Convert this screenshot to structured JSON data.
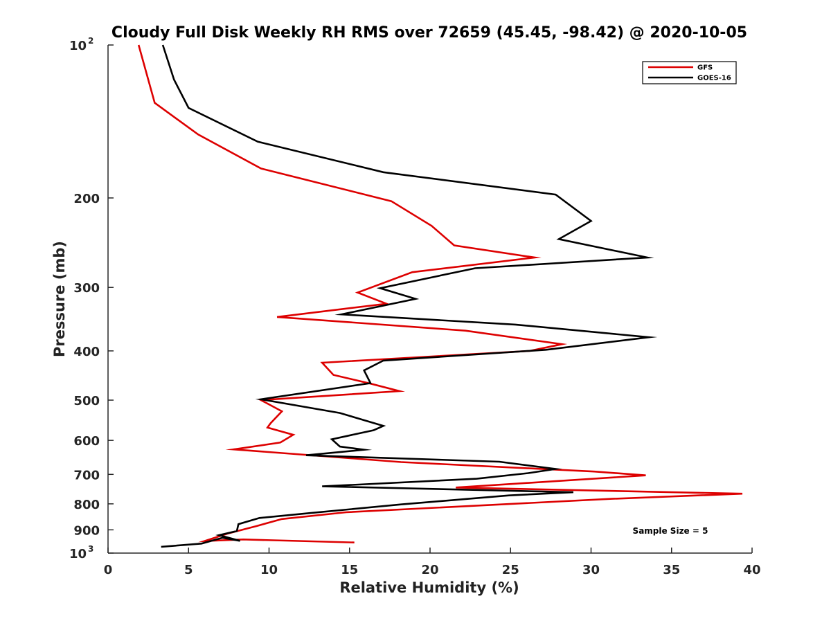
{
  "chart_data": {
    "type": "line",
    "title": "Cloudy Full Disk Weekly RH RMS over 72659 (45.45, -98.42) @ 2020-10-05",
    "xlabel": "Relative Humidity (%)",
    "ylabel": "Pressure (mb)",
    "xlim": [
      0,
      40
    ],
    "ylim": [
      100,
      1000
    ],
    "y_scale": "log",
    "y_reversed": true,
    "x_ticks": [
      "0",
      "5",
      "10",
      "15",
      "20",
      "25",
      "30",
      "35",
      "40"
    ],
    "y_ticks": [
      {
        "value": 100,
        "base": "10",
        "exp": "2"
      },
      {
        "value": 200,
        "label": "200"
      },
      {
        "value": 300,
        "label": "300"
      },
      {
        "value": 400,
        "label": "400"
      },
      {
        "value": 500,
        "label": "500"
      },
      {
        "value": 600,
        "label": "600"
      },
      {
        "value": 700,
        "label": "700"
      },
      {
        "value": 800,
        "label": "800"
      },
      {
        "value": 900,
        "label": "900"
      },
      {
        "value": 1000,
        "base": "10",
        "exp": "3"
      }
    ],
    "legend_position": "top-right",
    "annotation": "Sample Size = 5",
    "series": [
      {
        "name": "GFS",
        "color": "#dd0000",
        "points": [
          [
            1.9,
            100
          ],
          [
            2.9,
            130
          ],
          [
            5.6,
            150
          ],
          [
            9.5,
            175
          ],
          [
            17.6,
            203
          ],
          [
            20.1,
            227
          ],
          [
            21.5,
            248
          ],
          [
            26.5,
            262
          ],
          [
            18.9,
            280
          ],
          [
            15.5,
            307
          ],
          [
            17.3,
            323
          ],
          [
            10.5,
            343
          ],
          [
            22.2,
            365
          ],
          [
            28.2,
            388
          ],
          [
            26.2,
            400
          ],
          [
            13.3,
            422
          ],
          [
            14.0,
            446
          ],
          [
            16.3,
            464
          ],
          [
            18.1,
            480
          ],
          [
            9.5,
            500
          ],
          [
            10.8,
            526
          ],
          [
            10.1,
            555
          ],
          [
            9.9,
            566
          ],
          [
            11.5,
            585
          ],
          [
            10.7,
            606
          ],
          [
            7.8,
            625
          ],
          [
            18.2,
            662
          ],
          [
            30.2,
            691
          ],
          [
            33.4,
            703
          ],
          [
            21.6,
            743
          ],
          [
            39.4,
            764
          ],
          [
            31.3,
            782
          ],
          [
            14.8,
            831
          ],
          [
            10.8,
            857
          ],
          [
            9.2,
            885
          ],
          [
            7.4,
            916
          ],
          [
            6.0,
            947
          ],
          [
            8.4,
            940
          ],
          [
            15.3,
            953
          ]
        ]
      },
      {
        "name": "GOES-16",
        "color": "#000000",
        "points": [
          [
            3.4,
            100
          ],
          [
            4.1,
            117
          ],
          [
            5.0,
            133
          ],
          [
            9.3,
            155
          ],
          [
            17.1,
            178
          ],
          [
            27.8,
            197
          ],
          [
            30.0,
            222
          ],
          [
            28.0,
            241
          ],
          [
            33.5,
            262
          ],
          [
            22.8,
            275
          ],
          [
            16.9,
            301
          ],
          [
            19.1,
            316
          ],
          [
            14.5,
            339
          ],
          [
            25.3,
            355
          ],
          [
            33.6,
            376
          ],
          [
            27.2,
            398
          ],
          [
            17.1,
            418
          ],
          [
            15.9,
            437
          ],
          [
            16.3,
            463
          ],
          [
            9.5,
            498
          ],
          [
            14.4,
            530
          ],
          [
            17.1,
            562
          ],
          [
            16.5,
            573
          ],
          [
            13.9,
            597
          ],
          [
            14.4,
            617
          ],
          [
            15.9,
            626
          ],
          [
            12.3,
            642
          ],
          [
            24.3,
            661
          ],
          [
            27.8,
            683
          ],
          [
            26.1,
            696
          ],
          [
            22.9,
            714
          ],
          [
            13.3,
            739
          ],
          [
            28.9,
            759
          ],
          [
            24.9,
            770
          ],
          [
            18.2,
            802
          ],
          [
            12.6,
            834
          ],
          [
            9.4,
            853
          ],
          [
            8.1,
            877
          ],
          [
            8.0,
            905
          ],
          [
            6.9,
            922
          ],
          [
            8.2,
            946
          ],
          [
            7.1,
            933
          ],
          [
            5.8,
            958
          ],
          [
            3.3,
            972
          ]
        ]
      }
    ]
  }
}
